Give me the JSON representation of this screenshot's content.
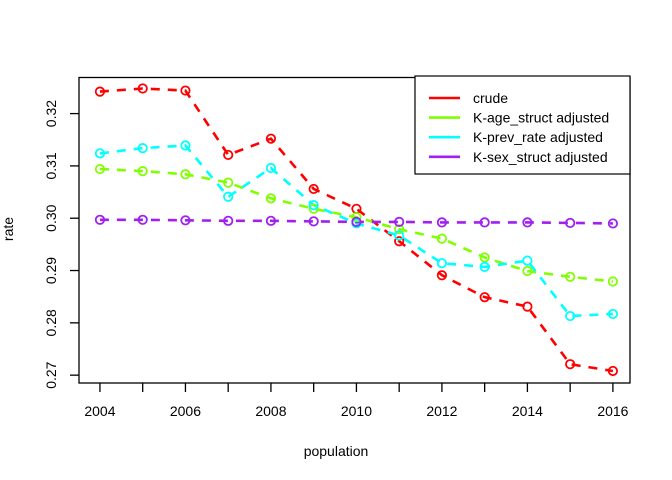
{
  "chart_data": {
    "type": "line",
    "style": {
      "line_style": "dashed",
      "marker": "open-circle",
      "grid": false,
      "background": "#ffffff",
      "axis_color": "#000000",
      "text_color": "#000000"
    },
    "xlabel": "population",
    "ylabel": "rate",
    "xlim": [
      2003.51,
      2016.4
    ],
    "ylim": [
      0.2685,
      0.3269
    ],
    "x_ticks": [
      2004,
      2005,
      2006,
      2007,
      2008,
      2009,
      2010,
      2011,
      2012,
      2013,
      2014,
      2015,
      2016
    ],
    "x_labeled_ticks": [
      2004,
      2006,
      2008,
      2010,
      2012,
      2014,
      2016
    ],
    "x_tick_labels": [
      "2004",
      "2006",
      "2008",
      "2010",
      "2012",
      "2014",
      "2016"
    ],
    "y_ticks": [
      0.27,
      0.28,
      0.29,
      0.3,
      0.31,
      0.32
    ],
    "y_tick_labels": [
      "0.27",
      "0.28",
      "0.29",
      "0.30",
      "0.31",
      "0.32"
    ],
    "x": [
      2004,
      2005,
      2006,
      2007,
      2008,
      2009,
      2010,
      2011,
      2012,
      2013,
      2014,
      2015,
      2016
    ],
    "series": [
      {
        "name": "crude",
        "color": "#FF0000",
        "values": [
          0.3242,
          0.3248,
          0.3244,
          0.3121,
          0.3152,
          0.3056,
          0.3018,
          0.2956,
          0.2891,
          0.2849,
          0.2831,
          0.2721,
          0.2708
        ]
      },
      {
        "name": "K-age_struct adjusted",
        "color": "#7FFF00",
        "values": [
          0.3094,
          0.309,
          0.3084,
          0.3068,
          0.3038,
          0.3018,
          0.3002,
          0.2979,
          0.2961,
          0.2925,
          0.2899,
          0.2888,
          0.2879
        ]
      },
      {
        "name": "K-prev_rate adjusted",
        "color": "#00FFFF",
        "values": [
          0.3124,
          0.3134,
          0.3139,
          0.3041,
          0.3096,
          0.3025,
          0.299,
          0.2967,
          0.2914,
          0.2907,
          0.2919,
          0.2813,
          0.2817
        ]
      },
      {
        "name": "K-sex_struct adjusted",
        "color": "#A020F0",
        "values": [
          0.2997,
          0.2997,
          0.2996,
          0.2995,
          0.2995,
          0.2994,
          0.2993,
          0.2993,
          0.2992,
          0.2992,
          0.2992,
          0.2991,
          0.299
        ]
      }
    ],
    "legend": {
      "position": "top-right",
      "entries": [
        "crude",
        "K-age_struct adjusted",
        "K-prev_rate adjusted",
        "K-sex_struct adjusted"
      ]
    }
  }
}
